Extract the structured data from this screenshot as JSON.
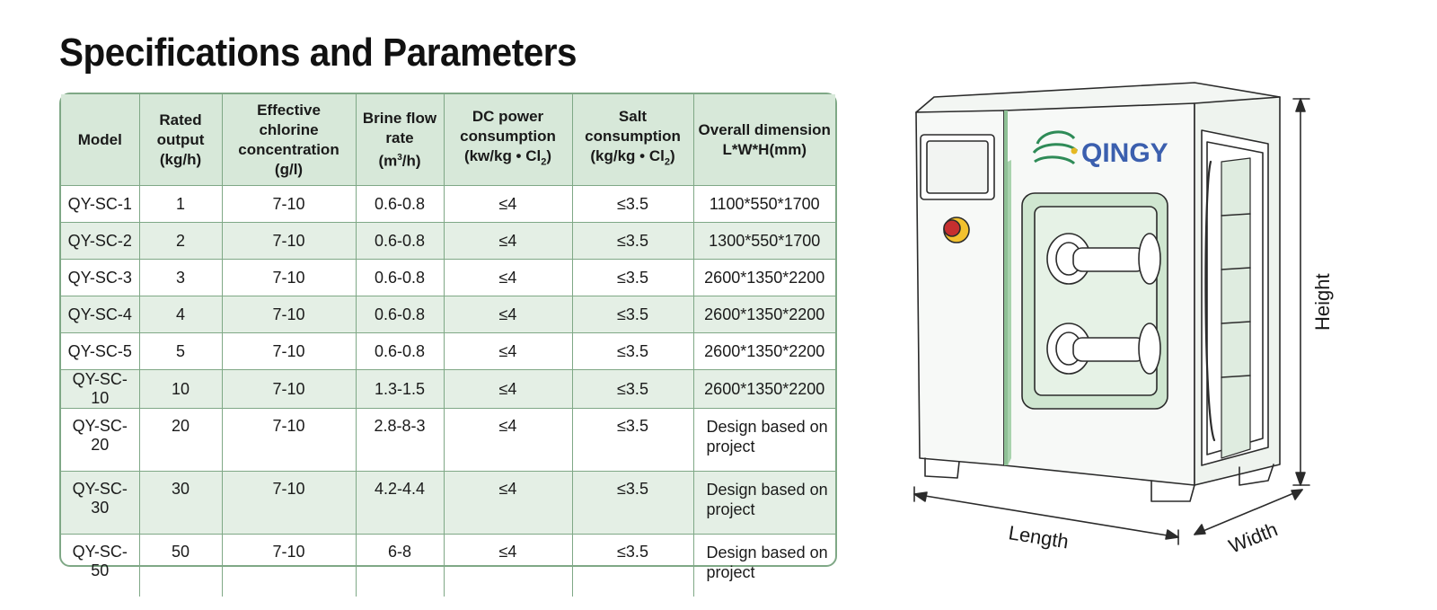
{
  "title": "Specifications and Parameters",
  "table": {
    "headers": [
      "Model",
      "Rated output (kg/h)",
      "Effective chlorine concentration (g/l)",
      "Brine flow rate (m³/h)",
      "DC power consumption (kw/kg • Cl₂)",
      "Salt consumption (kg/kg • Cl₂)",
      "Overall dimension L*W*H(mm)"
    ],
    "rows": [
      [
        "QY-SC-1",
        "1",
        "7-10",
        "0.6-0.8",
        "≤4",
        "≤3.5",
        "1100*550*1700"
      ],
      [
        "QY-SC-2",
        "2",
        "7-10",
        "0.6-0.8",
        "≤4",
        "≤3.5",
        "1300*550*1700"
      ],
      [
        "QY-SC-3",
        "3",
        "7-10",
        "0.6-0.8",
        "≤4",
        "≤3.5",
        "2600*1350*2200"
      ],
      [
        "QY-SC-4",
        "4",
        "7-10",
        "0.6-0.8",
        "≤4",
        "≤3.5",
        "2600*1350*2200"
      ],
      [
        "QY-SC-5",
        "5",
        "7-10",
        "0.6-0.8",
        "≤4",
        "≤3.5",
        "2600*1350*2200"
      ],
      [
        "QY-SC-10",
        "10",
        "7-10",
        "1.3-1.5",
        "≤4",
        "≤3.5",
        "2600*1350*2200"
      ],
      [
        "QY-SC-20",
        "20",
        "7-10",
        "2.8-8-3",
        "≤4",
        "≤3.5",
        "Design based on project"
      ],
      [
        "QY-SC-30",
        "30",
        "7-10",
        "4.2-4.4",
        "≤4",
        "≤3.5",
        "Design based on project"
      ],
      [
        "QY-SC-50",
        "50",
        "7-10",
        "6-8",
        "≤4",
        "≤3.5",
        "Design based on project"
      ]
    ]
  },
  "illustration": {
    "brand": "QINGY",
    "dimension_labels": {
      "length": "Length",
      "width": "Width",
      "height": "Height"
    },
    "accent_color": "#2e8b57",
    "panel_tint": "#e6f2e6"
  }
}
